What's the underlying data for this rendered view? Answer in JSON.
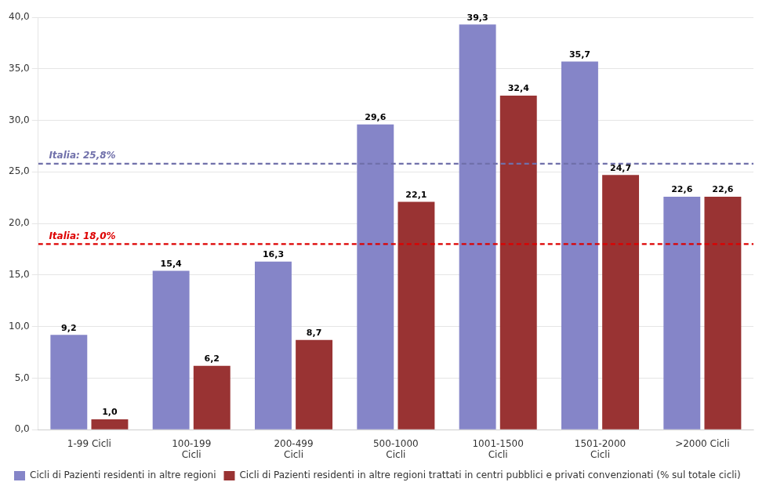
{
  "chart_data": {
    "type": "bar",
    "categories": [
      "1-99 Cicli",
      "100-199\nCicli",
      "200-499\nCicli",
      "500-1000\nCicli",
      "1001-1500\nCicli",
      "1501-2000\nCicli",
      ">2000 Cicli"
    ],
    "series": [
      {
        "name": "Cicli di Pazienti residenti in altre regioni",
        "color": "#8585C8",
        "values": [
          9.2,
          15.4,
          16.3,
          29.6,
          39.3,
          35.7,
          22.6
        ],
        "value_labels": [
          "9,2",
          "15,4",
          "16,3",
          "29,6",
          "39,3",
          "35,7",
          "22,6"
        ]
      },
      {
        "name": "Cicli di Pazienti residenti in altre regioni trattati in centri pubblici e privati convenzionati (% sul totale cicli)",
        "color": "#993333",
        "values": [
          1.0,
          6.2,
          8.7,
          22.1,
          32.4,
          24.7,
          22.6
        ],
        "value_labels": [
          "1,0",
          "6,2",
          "8,7",
          "22,1",
          "32,4",
          "24,7",
          "22,6"
        ]
      }
    ],
    "annotations": [
      {
        "type": "hline",
        "y": 25.8,
        "label": "Italia: 25,8%",
        "color": "#7070AA",
        "line_style": "dashed"
      },
      {
        "type": "hline",
        "y": 18.0,
        "label": "Italia: 18,0%",
        "color": "#DD0000",
        "line_style": "dashed"
      }
    ],
    "ylim": [
      0,
      40
    ],
    "yticks": [
      {
        "value": 0,
        "label": "0,0"
      },
      {
        "value": 5,
        "label": "5,0"
      },
      {
        "value": 10,
        "label": "10,0"
      },
      {
        "value": 15,
        "label": "15,0"
      },
      {
        "value": 20,
        "label": "20,0"
      },
      {
        "value": 25,
        "label": "25,0"
      },
      {
        "value": 30,
        "label": "30,0"
      },
      {
        "value": 35,
        "label": "35,0"
      },
      {
        "value": 40,
        "label": "40,0"
      }
    ],
    "grid": true,
    "legend": "bottom",
    "data_labels": true
  }
}
